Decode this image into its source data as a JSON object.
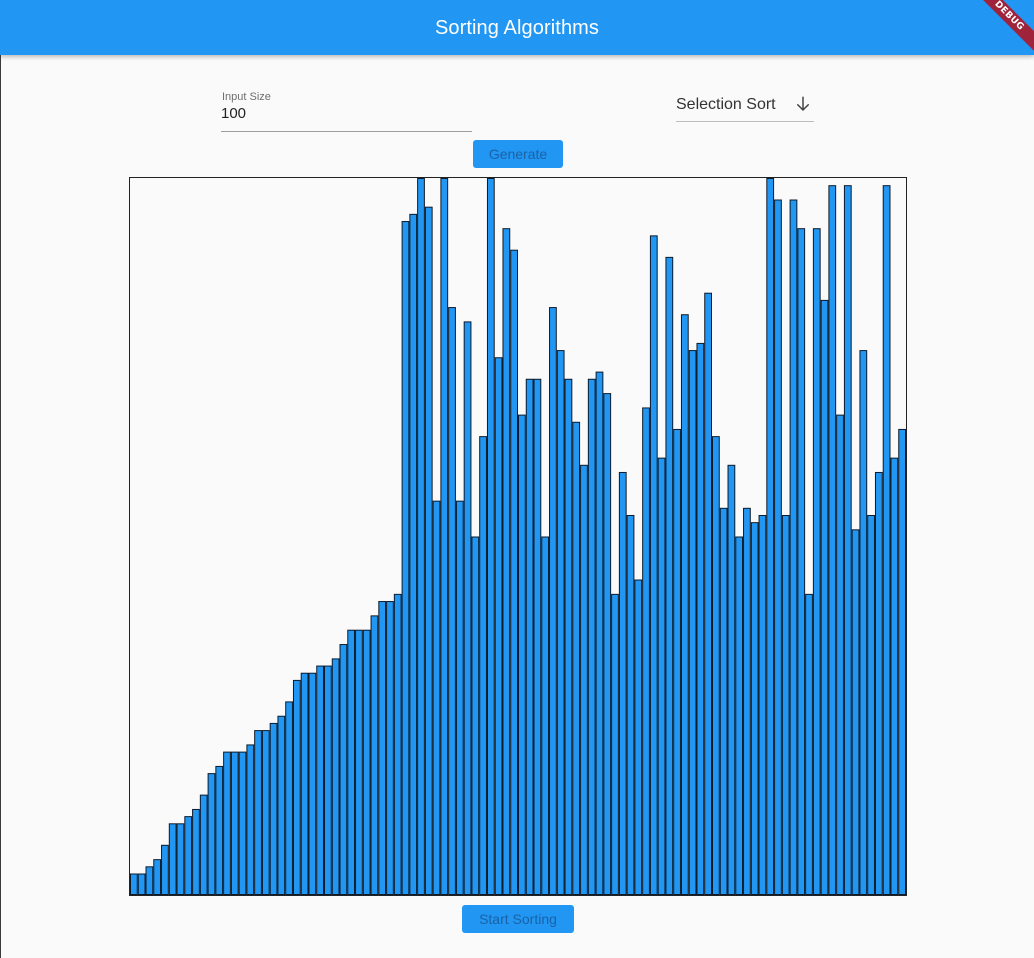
{
  "app": {
    "title": "Sorting Algorithms",
    "debug_label": "DEBUG"
  },
  "controls": {
    "input_size_label": "Input Size",
    "input_size_value": "100",
    "algorithm_selected": "Selection Sort",
    "generate_label": "Generate",
    "start_label": "Start Sorting"
  },
  "colors": {
    "primary": "#2196f3",
    "bar_fill": "#2196f3",
    "bar_stroke": "#0d1b2a",
    "debug_banner": "#a0233c"
  },
  "icons": {
    "dropdown": "arrow-down-icon"
  },
  "chart_data": {
    "type": "bar",
    "ylim": [
      0,
      100
    ],
    "values": [
      3,
      3,
      4,
      5,
      7,
      10,
      10,
      11,
      12,
      14,
      17,
      18,
      20,
      20,
      20,
      21,
      23,
      23,
      24,
      25,
      27,
      30,
      31,
      31,
      32,
      32,
      33,
      35,
      37,
      37,
      37,
      39,
      41,
      41,
      42,
      94,
      95,
      100,
      96,
      55,
      100,
      82,
      55,
      80,
      50,
      64,
      100,
      75,
      93,
      90,
      67,
      72,
      72,
      50,
      82,
      76,
      72,
      66,
      60,
      72,
      73,
      70,
      42,
      59,
      53,
      44,
      68,
      92,
      61,
      89,
      65,
      81,
      76,
      77,
      84,
      64,
      54,
      60,
      50,
      54,
      52,
      53,
      100,
      97,
      53,
      97,
      93,
      42,
      93,
      83,
      99,
      67,
      99,
      51,
      76,
      53,
      59,
      99,
      61,
      65
    ]
  }
}
